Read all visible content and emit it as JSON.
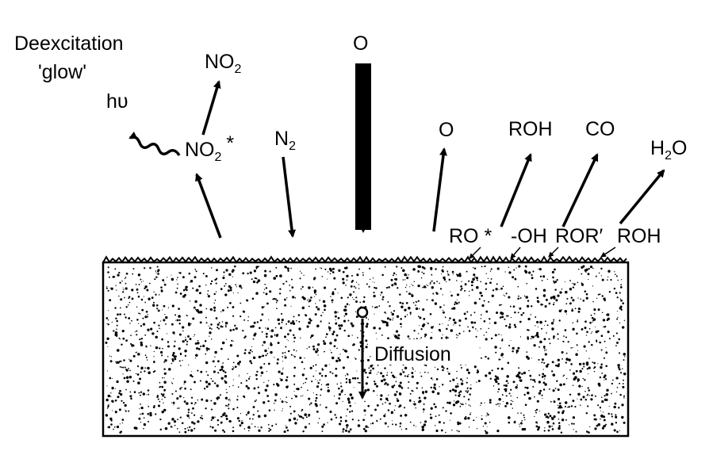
{
  "labels": {
    "deexcitation": "Deexcitation",
    "glow": "'glow'",
    "hv": "hυ",
    "no2_top": {
      "main": "NO",
      "sub": "2"
    },
    "no2_excited": {
      "main": "NO",
      "sub": "2",
      "sup": "*"
    },
    "n2": {
      "main": "N",
      "sub": "2"
    },
    "o_incident": "O",
    "o_out": "O",
    "roh_out": "ROH",
    "co_out": "CO",
    "h2o_out": {
      "main": "H",
      "sub": "2",
      "tail": "O"
    },
    "ro_star": "RO *",
    "oh": "-OH",
    "ror": "ROR′",
    "roh_surface": "ROH",
    "diffusion": "Diffusion"
  },
  "colors": {
    "ink": "#000000",
    "background": "#ffffff"
  }
}
